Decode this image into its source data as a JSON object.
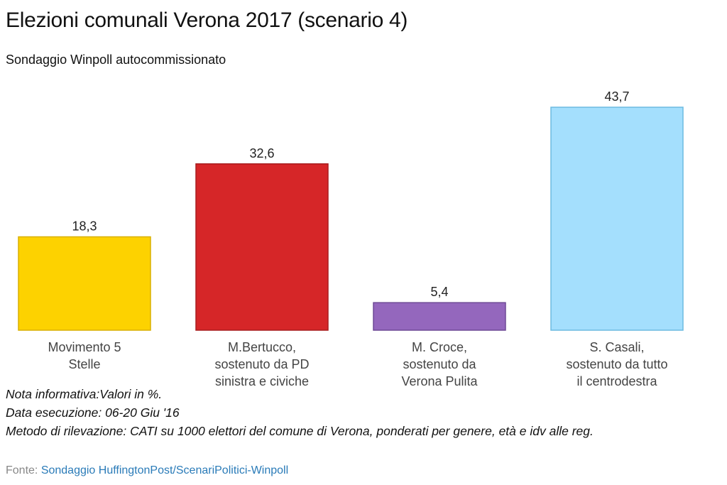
{
  "chart_data": {
    "type": "bar",
    "title": "Elezioni comunali Verona 2017 (scenario 4)",
    "subtitle": "Sondaggio Winpoll autocommissionato",
    "categories": [
      [
        "Movimento 5",
        "Stelle"
      ],
      [
        "M.Bertucco,",
        "sostenuto da PD",
        "sinistra e civiche"
      ],
      [
        "M. Croce,",
        "sostenuto da",
        "Verona Pulita"
      ],
      [
        "S. Casali,",
        "sostenuto da tutto",
        "il centrodestra"
      ]
    ],
    "values": [
      18.3,
      32.6,
      5.4,
      43.7
    ],
    "value_labels": [
      "18,3",
      "32,6",
      "5,4",
      "43,7"
    ],
    "colors": [
      "#fdd200",
      "#d62628",
      "#9467bd",
      "#a4dffd"
    ],
    "stroke_colors": [
      "#d9b000",
      "#a81d1f",
      "#6f4a96",
      "#6dbbe0"
    ],
    "ylim": [
      0,
      43.7
    ],
    "grid": false,
    "xlabel": "",
    "ylabel": ""
  },
  "notes": {
    "line1": "Nota informativa:Valori in %.",
    "line2": "Data esecuzione: 06-20 Giu '16",
    "line3": "Metodo di rilevazione: CATI su 1000 elettori del comune di Verona, ponderati per genere, età e idv alle reg."
  },
  "source": {
    "prefix": "Fonte: ",
    "link_text": "Sondaggio HuffingtonPost/ScenariPolitici-Winpoll"
  }
}
